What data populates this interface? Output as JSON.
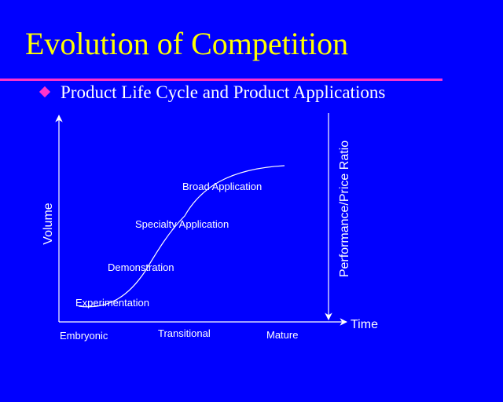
{
  "slide": {
    "title": "Evolution of Competition",
    "bullet": "Product Life Cycle and Product Applications"
  },
  "diagram": {
    "y_axis_label": "Volume",
    "x_axis_label": "Time",
    "right_axis_label": "Performance/Price Ratio",
    "stages": [
      "Embryonic",
      "Transitional",
      "Mature"
    ],
    "curve_labels": [
      "Experimentation",
      "Demonstration",
      "Specialty Application",
      "Broad Application"
    ]
  },
  "colors": {
    "background": "#0000ff",
    "title": "#ffff00",
    "accent": "#ff33cc",
    "text": "#ffffff"
  }
}
